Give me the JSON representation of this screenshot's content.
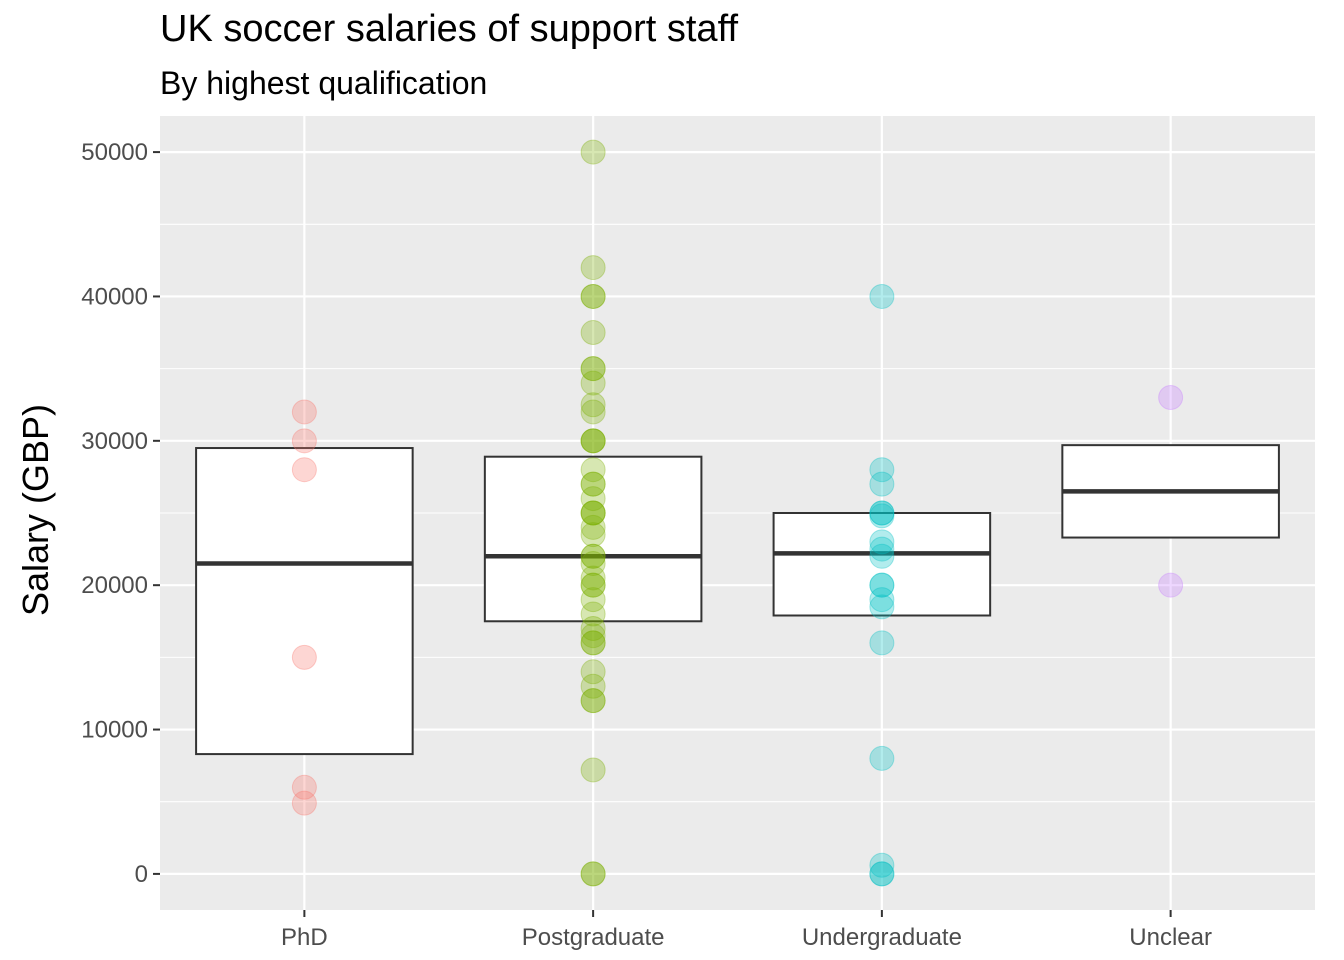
{
  "chart_data": {
    "type": "boxplot_with_points",
    "title": "UK soccer salaries of support staff",
    "subtitle": "By highest qualification",
    "xlabel": "",
    "ylabel": "Salary (GBP)",
    "ylim": [
      -2500,
      52500
    ],
    "yticks": [
      0,
      10000,
      20000,
      30000,
      40000,
      50000
    ],
    "grid": true,
    "categories": [
      "PhD",
      "Postgraduate",
      "Undergraduate",
      "Unclear"
    ],
    "colors": {
      "PhD": "#F8766D",
      "Postgraduate": "#7CAE00",
      "Undergraduate": "#00BFC4",
      "Unclear": "#C77CFF"
    },
    "boxes": [
      {
        "category": "PhD",
        "lower": 8300,
        "median": 21500,
        "upper": 29500
      },
      {
        "category": "Postgraduate",
        "lower": 17500,
        "median": 22000,
        "upper": 28900
      },
      {
        "category": "Undergraduate",
        "lower": 17900,
        "median": 22200,
        "upper": 25000
      },
      {
        "category": "Unclear",
        "lower": 23300,
        "median": 26500,
        "upper": 29700
      }
    ],
    "points": [
      {
        "category": "PhD",
        "values": [
          32000,
          30000,
          28000,
          15000,
          6000,
          4900
        ]
      },
      {
        "category": "Postgraduate",
        "values": [
          50000,
          42000,
          40000,
          40000,
          37500,
          35000,
          35000,
          34000,
          32500,
          32000,
          30000,
          30000,
          30000,
          28000,
          27000,
          27000,
          26000,
          25000,
          25000,
          25000,
          24000,
          23500,
          22000,
          22000,
          21500,
          20500,
          20000,
          20000,
          19000,
          18000,
          17000,
          16500,
          16000,
          16000,
          14000,
          13000,
          12000,
          12000,
          7200,
          0,
          0
        ]
      },
      {
        "category": "Undergraduate",
        "values": [
          40000,
          28000,
          27000,
          25000,
          25000,
          24800,
          23000,
          22500,
          22000,
          20000,
          20000,
          19000,
          18500,
          16000,
          8000,
          600,
          0,
          0
        ]
      },
      {
        "category": "Unclear",
        "values": [
          33000,
          20000
        ]
      }
    ]
  }
}
